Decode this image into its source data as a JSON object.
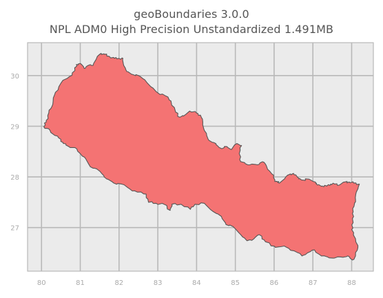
{
  "title": {
    "line1": "geoBoundaries 3.0.0",
    "line2": "NPL ADM0 High Precision Unstandardized 1.491MB"
  },
  "map": {
    "background_color": "#ebebeb",
    "grid_color": "#b8b8b8",
    "fill_color": "#f47373",
    "outline_color": "#555555",
    "x_ticks": [
      "80",
      "81",
      "82",
      "83",
      "84",
      "85",
      "86",
      "87",
      "88"
    ],
    "y_ticks": [
      "30",
      "29",
      "28",
      "27"
    ],
    "x_range": [
      79.64,
      88.56
    ],
    "y_range": [
      26.14,
      30.65
    ],
    "grid_on": true,
    "shape": "Nepal country boundary (ADM0)",
    "boundary": [
      [
        80.06,
        28.99
      ],
      [
        80.12,
        29.08
      ],
      [
        80.16,
        29.21
      ],
      [
        80.24,
        29.35
      ],
      [
        80.3,
        29.49
      ],
      [
        80.36,
        29.67
      ],
      [
        80.5,
        29.85
      ],
      [
        80.72,
        29.98
      ],
      [
        80.86,
        30.1
      ],
      [
        80.9,
        30.22
      ],
      [
        81.0,
        30.24
      ],
      [
        81.1,
        30.14
      ],
      [
        81.2,
        30.2
      ],
      [
        81.33,
        30.2
      ],
      [
        81.44,
        30.38
      ],
      [
        81.54,
        30.44
      ],
      [
        81.62,
        30.42
      ],
      [
        81.75,
        30.38
      ],
      [
        81.88,
        30.34
      ],
      [
        82.0,
        30.34
      ],
      [
        82.1,
        30.34
      ],
      [
        82.12,
        30.2
      ],
      [
        82.2,
        30.08
      ],
      [
        82.36,
        30.02
      ],
      [
        82.5,
        30.0
      ],
      [
        82.66,
        29.92
      ],
      [
        82.82,
        29.78
      ],
      [
        83.0,
        29.66
      ],
      [
        83.2,
        29.6
      ],
      [
        83.34,
        29.5
      ],
      [
        83.46,
        29.28
      ],
      [
        83.56,
        29.18
      ],
      [
        83.66,
        29.2
      ],
      [
        83.82,
        29.3
      ],
      [
        84.0,
        29.26
      ],
      [
        84.1,
        29.22
      ],
      [
        84.16,
        29.08
      ],
      [
        84.2,
        28.92
      ],
      [
        84.3,
        28.74
      ],
      [
        84.44,
        28.68
      ],
      [
        84.56,
        28.6
      ],
      [
        84.66,
        28.56
      ],
      [
        84.78,
        28.6
      ],
      [
        84.9,
        28.54
      ],
      [
        85.04,
        28.66
      ],
      [
        85.16,
        28.62
      ],
      [
        85.1,
        28.46
      ],
      [
        85.14,
        28.3
      ],
      [
        85.26,
        28.26
      ],
      [
        85.38,
        28.24
      ],
      [
        85.56,
        28.24
      ],
      [
        85.7,
        28.3
      ],
      [
        85.8,
        28.22
      ],
      [
        85.94,
        28.06
      ],
      [
        86.02,
        27.94
      ],
      [
        86.08,
        27.9
      ],
      [
        86.14,
        27.88
      ],
      [
        86.3,
        28.0
      ],
      [
        86.42,
        28.06
      ],
      [
        86.48,
        28.06
      ],
      [
        86.56,
        28.04
      ],
      [
        86.64,
        27.96
      ],
      [
        86.74,
        27.94
      ],
      [
        86.86,
        27.96
      ],
      [
        87.06,
        27.9
      ],
      [
        87.12,
        27.84
      ],
      [
        87.24,
        27.82
      ],
      [
        87.36,
        27.82
      ],
      [
        87.46,
        27.86
      ],
      [
        87.56,
        27.86
      ],
      [
        87.68,
        27.84
      ],
      [
        87.82,
        27.9
      ],
      [
        87.94,
        27.9
      ],
      [
        88.05,
        27.88
      ],
      [
        88.2,
        27.86
      ],
      [
        88.12,
        27.7
      ],
      [
        88.1,
        27.56
      ],
      [
        88.06,
        27.42
      ],
      [
        88.02,
        27.28
      ],
      [
        88.04,
        27.1
      ],
      [
        88.0,
        26.96
      ],
      [
        88.1,
        26.78
      ],
      [
        88.16,
        26.6
      ],
      [
        88.1,
        26.44
      ],
      [
        88.02,
        26.36
      ],
      [
        87.9,
        26.44
      ],
      [
        87.72,
        26.42
      ],
      [
        87.56,
        26.4
      ],
      [
        87.38,
        26.42
      ],
      [
        87.22,
        26.44
      ],
      [
        87.04,
        26.56
      ],
      [
        86.86,
        26.5
      ],
      [
        86.72,
        26.44
      ],
      [
        86.52,
        26.54
      ],
      [
        86.3,
        26.62
      ],
      [
        86.12,
        26.62
      ],
      [
        85.92,
        26.64
      ],
      [
        85.74,
        26.76
      ],
      [
        85.62,
        26.86
      ],
      [
        85.48,
        26.78
      ],
      [
        85.3,
        26.74
      ],
      [
        85.14,
        26.86
      ],
      [
        84.94,
        27.02
      ],
      [
        84.76,
        27.06
      ],
      [
        84.64,
        27.22
      ],
      [
        84.42,
        27.32
      ],
      [
        84.2,
        27.48
      ],
      [
        83.96,
        27.46
      ],
      [
        83.84,
        27.36
      ],
      [
        83.6,
        27.46
      ],
      [
        83.36,
        27.46
      ],
      [
        83.32,
        27.34
      ],
      [
        83.16,
        27.46
      ],
      [
        82.96,
        27.48
      ],
      [
        82.76,
        27.5
      ],
      [
        82.7,
        27.66
      ],
      [
        82.48,
        27.7
      ],
      [
        82.28,
        27.76
      ],
      [
        82.06,
        27.86
      ],
      [
        81.86,
        27.88
      ],
      [
        81.68,
        27.96
      ],
      [
        81.54,
        28.08
      ],
      [
        81.42,
        28.16
      ],
      [
        81.26,
        28.2
      ],
      [
        81.14,
        28.36
      ],
      [
        81.0,
        28.46
      ],
      [
        80.86,
        28.58
      ],
      [
        80.7,
        28.6
      ],
      [
        80.56,
        28.66
      ],
      [
        80.5,
        28.74
      ],
      [
        80.34,
        28.82
      ],
      [
        80.22,
        28.92
      ],
      [
        80.12,
        28.96
      ]
    ]
  }
}
